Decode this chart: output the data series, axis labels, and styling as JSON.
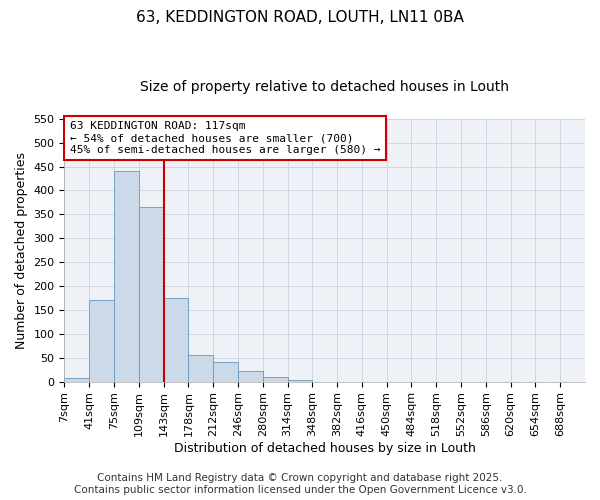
{
  "title1": "63, KEDDINGTON ROAD, LOUTH, LN11 0BA",
  "title2": "Size of property relative to detached houses in Louth",
  "xlabel": "Distribution of detached houses by size in Louth",
  "ylabel": "Number of detached properties",
  "bar_labels": [
    "7sqm",
    "41sqm",
    "75sqm",
    "109sqm",
    "143sqm",
    "178sqm",
    "212sqm",
    "246sqm",
    "280sqm",
    "314sqm",
    "348sqm",
    "382sqm",
    "416sqm",
    "450sqm",
    "484sqm",
    "518sqm",
    "552sqm",
    "586sqm",
    "620sqm",
    "654sqm",
    "688sqm"
  ],
  "bar_values": [
    8,
    170,
    440,
    365,
    175,
    55,
    40,
    22,
    10,
    3,
    0,
    0,
    0,
    0,
    0,
    0,
    0,
    0,
    0,
    0,
    0
  ],
  "bar_color": "#ccd9e8",
  "bar_edge_color": "#6699bb",
  "grid_color": "#ccd8e4",
  "bg_color": "#eef2f7",
  "vline_x": 4.0,
  "vline_color": "#cc0000",
  "annotation_title": "63 KEDDINGTON ROAD: 117sqm",
  "annotation_line1": "← 54% of detached houses are smaller (700)",
  "annotation_line2": "45% of semi-detached houses are larger (580) →",
  "annotation_box_color": "#ffffff",
  "annotation_border_color": "#cc0000",
  "ylim": [
    0,
    550
  ],
  "yticks": [
    0,
    50,
    100,
    150,
    200,
    250,
    300,
    350,
    400,
    450,
    500,
    550
  ],
  "footer1": "Contains HM Land Registry data © Crown copyright and database right 2025.",
  "footer2": "Contains public sector information licensed under the Open Government Licence v3.0.",
  "title_fontsize": 11,
  "subtitle_fontsize": 10,
  "label_fontsize": 9,
  "tick_fontsize": 8,
  "footer_fontsize": 7.5
}
